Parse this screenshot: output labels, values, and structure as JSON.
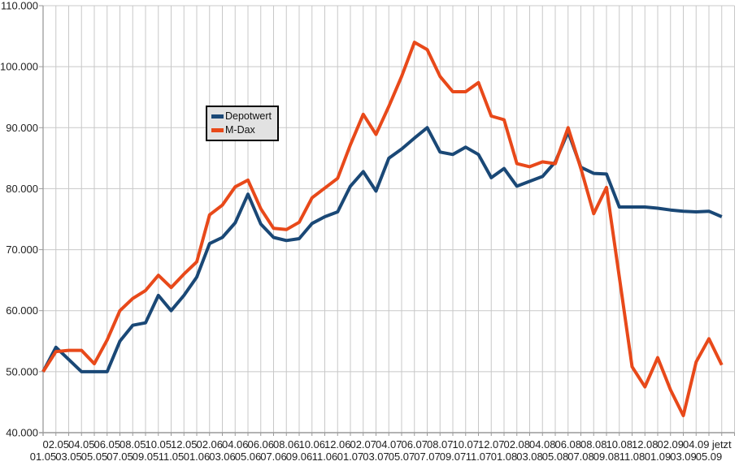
{
  "page": {
    "background": "#ffffff"
  },
  "chart_data": {
    "type": "line",
    "title": "",
    "xlabel": "",
    "ylabel": "",
    "grid": true,
    "legend_position": "inside-upper-left",
    "categories": [
      "01.05",
      "02.05",
      "03.05",
      "04.05",
      "05.05",
      "06.05",
      "07.05",
      "08.05",
      "09.05",
      "10.05",
      "11.05",
      "12.05",
      "01.06",
      "02.06",
      "03.06",
      "04.06",
      "05.06",
      "06.06",
      "07.06",
      "08.06",
      "09.06",
      "10.06",
      "11.06",
      "12.06",
      "01.07",
      "02.07",
      "03.07",
      "04.07",
      "05.07",
      "06.07",
      "07.07",
      "08.07",
      "09.07",
      "10.07",
      "11.07",
      "12.07",
      "01.08",
      "02.08",
      "03.08",
      "04.08",
      "05.08",
      "06.08",
      "07.08",
      "08.08",
      "09.08",
      "10.08",
      "11.08",
      "12.08",
      "01.09",
      "02.09",
      "03.09",
      "04.09",
      "05.09",
      "jetzt"
    ],
    "y_axis": {
      "min": 40000,
      "max": 110000,
      "step": 10000,
      "tick_labels": [
        "40.000",
        "50.000",
        "60.000",
        "70.000",
        "80.000",
        "90.000",
        "100.000",
        "110.000"
      ]
    },
    "series": [
      {
        "name": "Depotwert",
        "color": "#1a4876",
        "values": [
          50000,
          54000,
          52000,
          50000,
          50000,
          50000,
          55000,
          57600,
          58000,
          62500,
          60000,
          62500,
          65500,
          71000,
          72000,
          74400,
          79100,
          74200,
          72000,
          71500,
          71800,
          74300,
          75400,
          76200,
          80400,
          82800,
          79600,
          85000,
          86500,
          88300,
          90000,
          86000,
          85600,
          86800,
          85600,
          81800,
          83300,
          80400,
          81200,
          82000,
          84400,
          89300,
          83500,
          82500,
          82400,
          77000,
          77000,
          77000,
          76800,
          76500,
          76300,
          76200,
          76300,
          75400
        ]
      },
      {
        "name": "M-Dax",
        "color": "#e8491a",
        "values": [
          50000,
          53300,
          53500,
          53500,
          51300,
          55200,
          60000,
          62000,
          63300,
          65800,
          63800,
          66000,
          68000,
          75700,
          77300,
          80300,
          81400,
          76700,
          73500,
          73300,
          74500,
          78500,
          80100,
          81700,
          87200,
          92200,
          88900,
          93500,
          98400,
          104000,
          102800,
          98400,
          95900,
          95900,
          97400,
          91900,
          91300,
          84100,
          83600,
          84400,
          84100,
          90000,
          83300,
          75900,
          80200,
          65500,
          50800,
          47500,
          52300,
          47000,
          42800,
          51600,
          55400,
          51100
        ]
      }
    ],
    "colors": {
      "gridline": "#c8c8c8",
      "axis": "#9a9a9a",
      "text": "#1e1e1e",
      "legend_bg": "#e2e2e2",
      "legend_border": "#000000"
    }
  }
}
